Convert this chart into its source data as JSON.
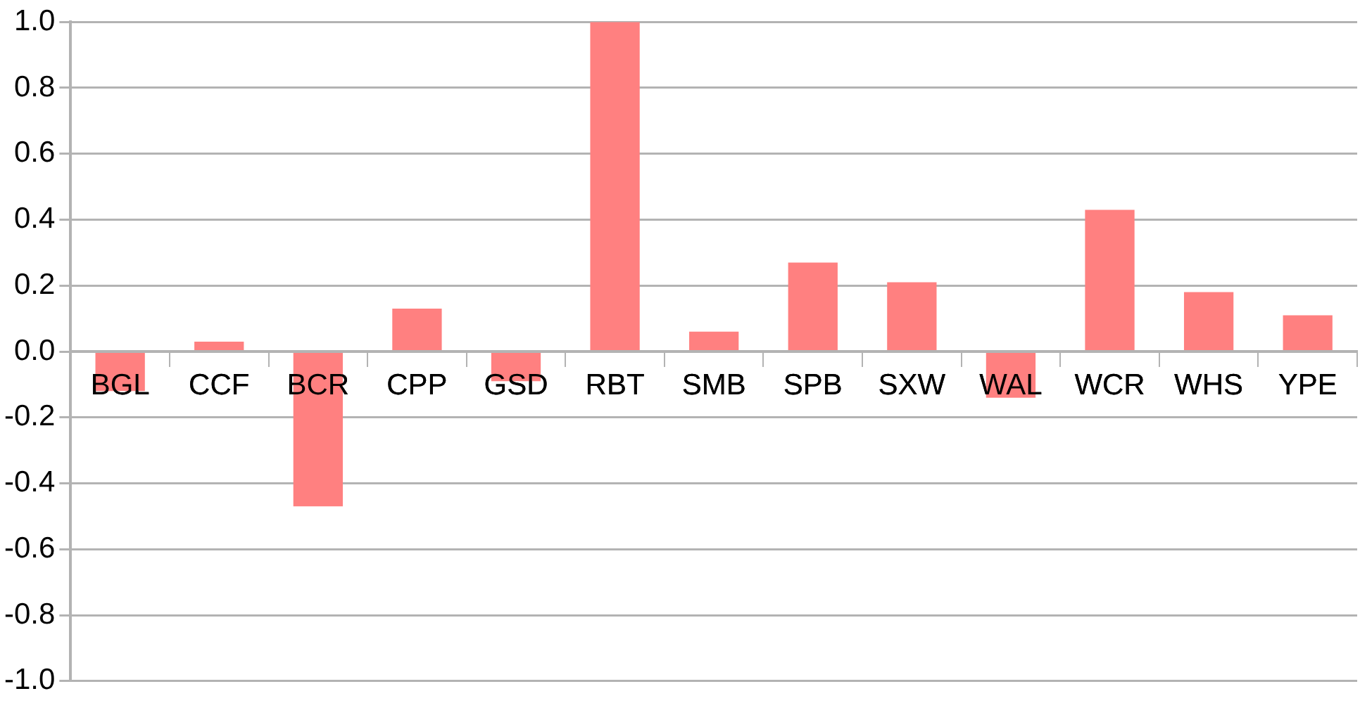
{
  "chart_data": {
    "type": "bar",
    "categories": [
      "BGL",
      "CCF",
      "BCR",
      "CPP",
      "GSD",
      "RBT",
      "SMB",
      "SPB",
      "SXW",
      "WAL",
      "WCR",
      "WHS",
      "YPE"
    ],
    "values": [
      -0.12,
      0.03,
      -0.47,
      0.13,
      -0.09,
      1.0,
      0.06,
      0.27,
      0.21,
      -0.14,
      0.43,
      0.18,
      0.11
    ],
    "color": "#ff8080",
    "ylim": [
      -1.0,
      1.0
    ],
    "yticks": [
      {
        "value": -1.0,
        "label": "-1.0"
      },
      {
        "value": -0.8,
        "label": "-0.8"
      },
      {
        "value": -0.6,
        "label": "-0.6"
      },
      {
        "value": -0.4,
        "label": "-0.4"
      },
      {
        "value": -0.2,
        "label": "-0.2"
      },
      {
        "value": 0,
        "label": "0.0"
      },
      {
        "value": 0.2,
        "label": "0.2"
      },
      {
        "value": 0.4,
        "label": "0.4"
      },
      {
        "value": 0.6,
        "label": "0.6"
      },
      {
        "value": 0.8,
        "label": "0.8"
      },
      {
        "value": 1.0,
        "label": "1.0"
      }
    ],
    "grid": "y",
    "legend": false
  }
}
